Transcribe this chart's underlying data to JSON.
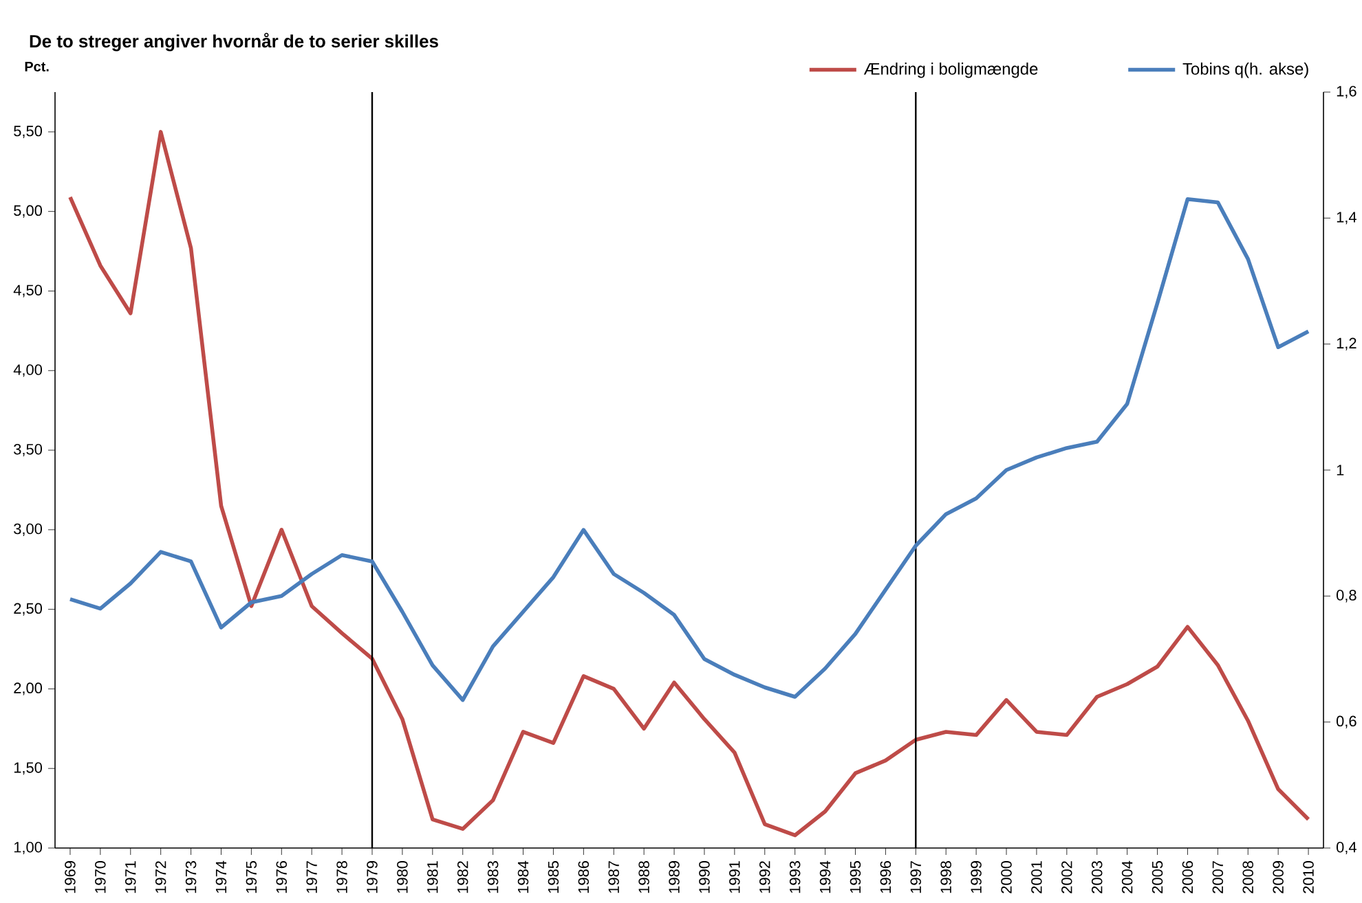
{
  "chart_data": {
    "type": "line",
    "title": "De to streger angiver hvornår de to serier skilles",
    "ylabel": "Pct.",
    "categories": [
      "1969",
      "1970",
      "1971",
      "1972",
      "1973",
      "1974",
      "1975",
      "1976",
      "1977",
      "1978",
      "1979",
      "1980",
      "1981",
      "1982",
      "1983",
      "1984",
      "1985",
      "1986",
      "1987",
      "1988",
      "1989",
      "1990",
      "1991",
      "1992",
      "1993",
      "1994",
      "1995",
      "1996",
      "1997",
      "1998",
      "1999",
      "2000",
      "2001",
      "2002",
      "2003",
      "2004",
      "2005",
      "2006",
      "2007",
      "2008",
      "2009",
      "2010"
    ],
    "series": [
      {
        "name": "Ændring i boligmængde",
        "color": "#be4b48",
        "values": [
          5.09,
          4.66,
          4.36,
          5.5,
          4.77,
          3.15,
          2.52,
          3.0,
          2.52,
          2.35,
          2.19,
          1.81,
          1.18,
          1.12,
          1.3,
          1.73,
          1.66,
          2.08,
          2.0,
          1.75,
          2.04,
          1.81,
          1.6,
          1.15,
          1.08,
          1.23,
          1.47,
          1.55,
          1.68,
          1.73,
          1.71,
          1.93,
          1.73,
          1.71,
          1.95,
          2.03,
          2.14,
          2.39,
          2.15,
          1.8,
          1.37,
          1.18
        ]
      },
      {
        "name": "Tobins q(h. akse)",
        "color": "#4a7ebb",
        "axis": "y2",
        "values": [
          0.795,
          0.78,
          0.82,
          0.87,
          0.855,
          0.75,
          0.79,
          0.8,
          0.835,
          0.865,
          0.855,
          0.775,
          0.69,
          0.635,
          0.72,
          0.775,
          0.83,
          0.905,
          0.835,
          0.805,
          0.77,
          0.7,
          0.675,
          0.655,
          0.64,
          0.685,
          0.74,
          0.81,
          0.88,
          0.93,
          0.955,
          1.0,
          1.02,
          1.035,
          1.045,
          1.105,
          1.265,
          1.43,
          1.425,
          1.335,
          1.195,
          1.22
        ]
      }
    ],
    "ylim": [
      1.0,
      5.75
    ],
    "yticks": [
      {
        "value": 1.0,
        "label": "1,00"
      },
      {
        "value": 1.5,
        "label": "1,50"
      },
      {
        "value": 2.0,
        "label": "2,00"
      },
      {
        "value": 2.5,
        "label": "2,50"
      },
      {
        "value": 3.0,
        "label": "3,00"
      },
      {
        "value": 3.5,
        "label": "3,50"
      },
      {
        "value": 4.0,
        "label": "4,00"
      },
      {
        "value": 4.5,
        "label": "4,50"
      },
      {
        "value": 5.0,
        "label": "5,00"
      },
      {
        "value": 5.5,
        "label": "5,50"
      }
    ],
    "y2lim": [
      0.4,
      1.6
    ],
    "y2ticks": [
      {
        "value": 0.4,
        "label": "0,4"
      },
      {
        "value": 0.6,
        "label": "0,6"
      },
      {
        "value": 0.8,
        "label": "0,8"
      },
      1,
      {
        "value": 1.2,
        "label": "1,2"
      },
      {
        "value": 1.4,
        "label": "1,4"
      },
      {
        "value": 1.6,
        "label": "1,6"
      }
    ],
    "ref_lines": [
      {
        "axis": "x",
        "value": "1979",
        "color": "#000000"
      },
      {
        "axis": "x",
        "value": "1997",
        "color": "#000000"
      }
    ],
    "legend": "top right",
    "grid": false,
    "marker": "none",
    "line_style": "solid"
  }
}
